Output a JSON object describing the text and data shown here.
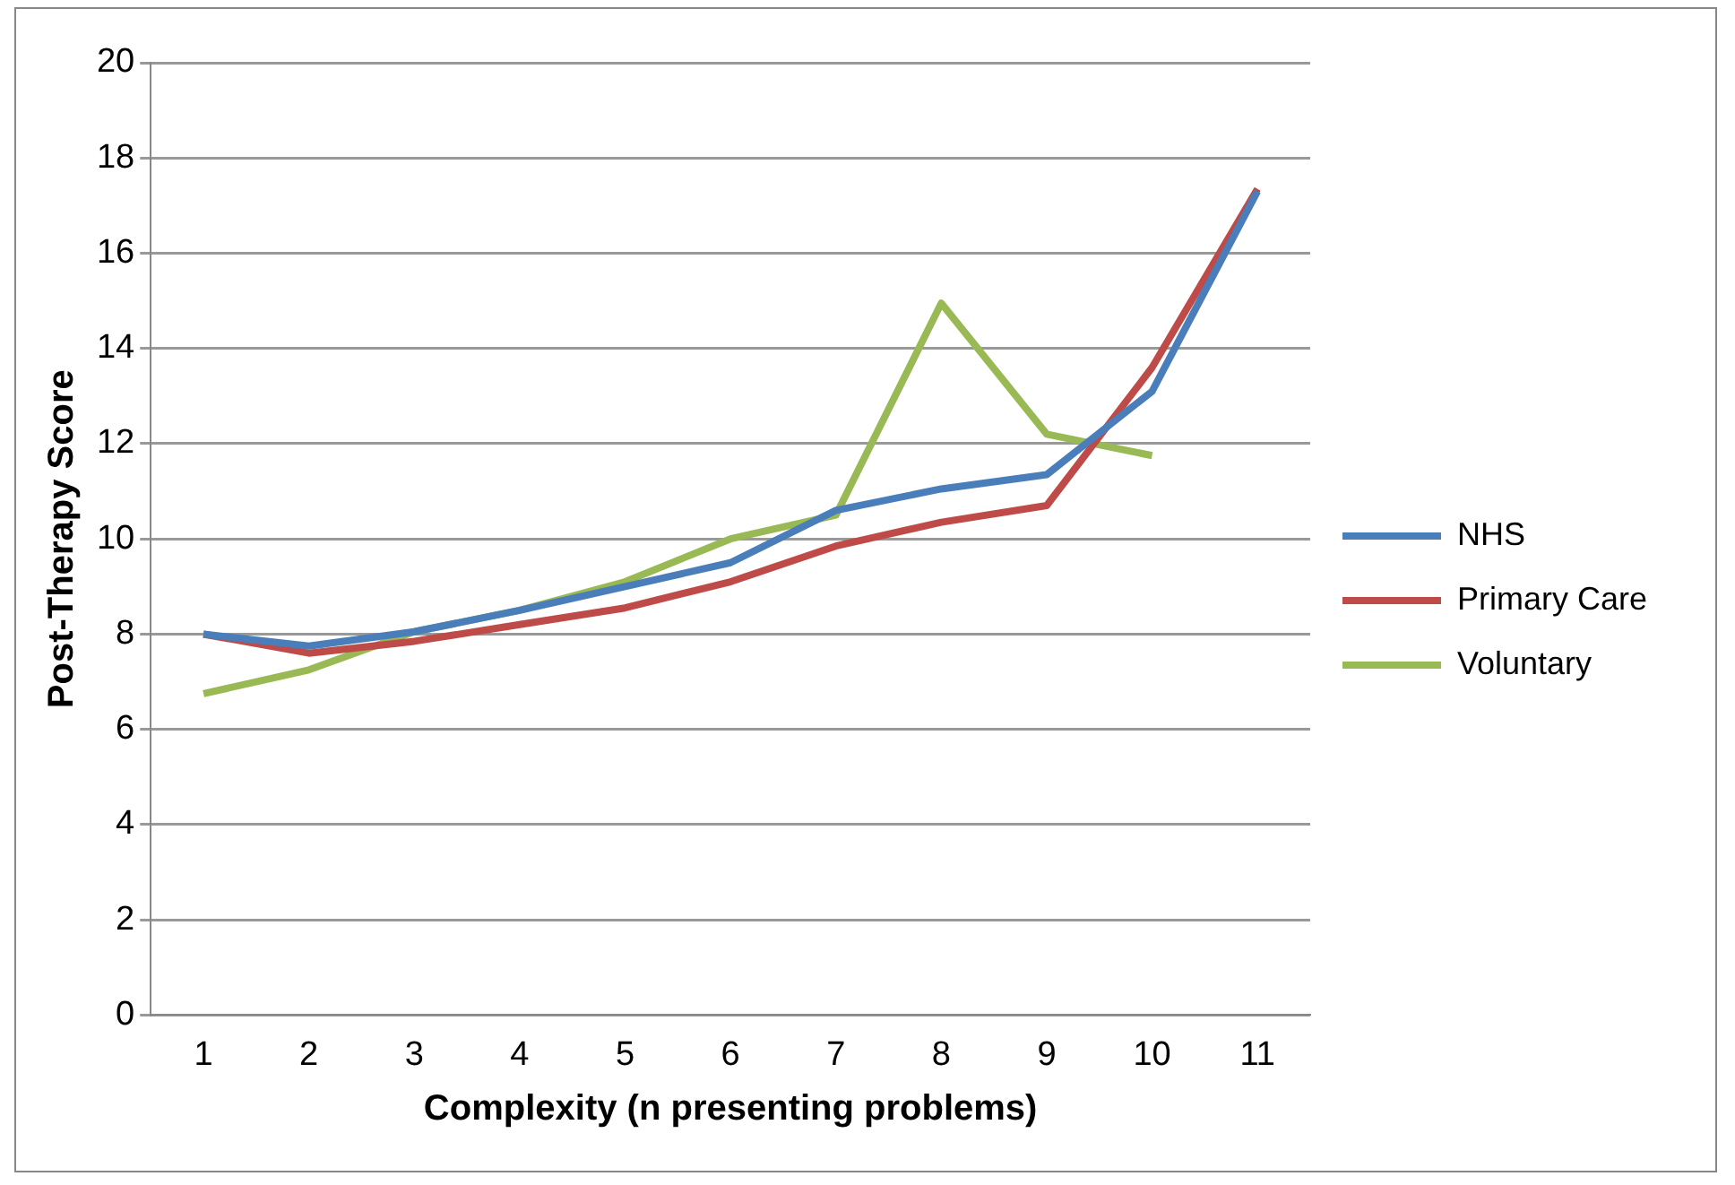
{
  "chart_data": {
    "type": "line",
    "xlabel": "Complexity (n presenting problems)",
    "ylabel": "Post-Therapy Score",
    "categories": [
      "1",
      "2",
      "3",
      "4",
      "5",
      "6",
      "7",
      "8",
      "9",
      "10",
      "11"
    ],
    "series": [
      {
        "name": "NHS",
        "color": "#4a7ebb",
        "values": [
          8.0,
          7.75,
          8.05,
          8.5,
          9.0,
          9.5,
          10.6,
          11.05,
          11.35,
          13.1,
          17.3
        ]
      },
      {
        "name": "Primary Care",
        "color": "#be4b48",
        "values": [
          8.0,
          7.6,
          7.85,
          8.2,
          8.55,
          9.1,
          9.85,
          10.35,
          10.7,
          13.6,
          17.35
        ]
      },
      {
        "name": "Voluntary",
        "color": "#98b954",
        "values": [
          6.75,
          7.25,
          8.05,
          8.5,
          9.1,
          10.0,
          10.5,
          14.95,
          12.2,
          11.75,
          null
        ]
      }
    ],
    "ylim": [
      0,
      20
    ],
    "yticks": [
      0,
      2,
      4,
      6,
      8,
      10,
      12,
      14,
      16,
      18,
      20
    ],
    "grid": "y",
    "legend": "right",
    "marker": "none",
    "line_style": "solid"
  }
}
